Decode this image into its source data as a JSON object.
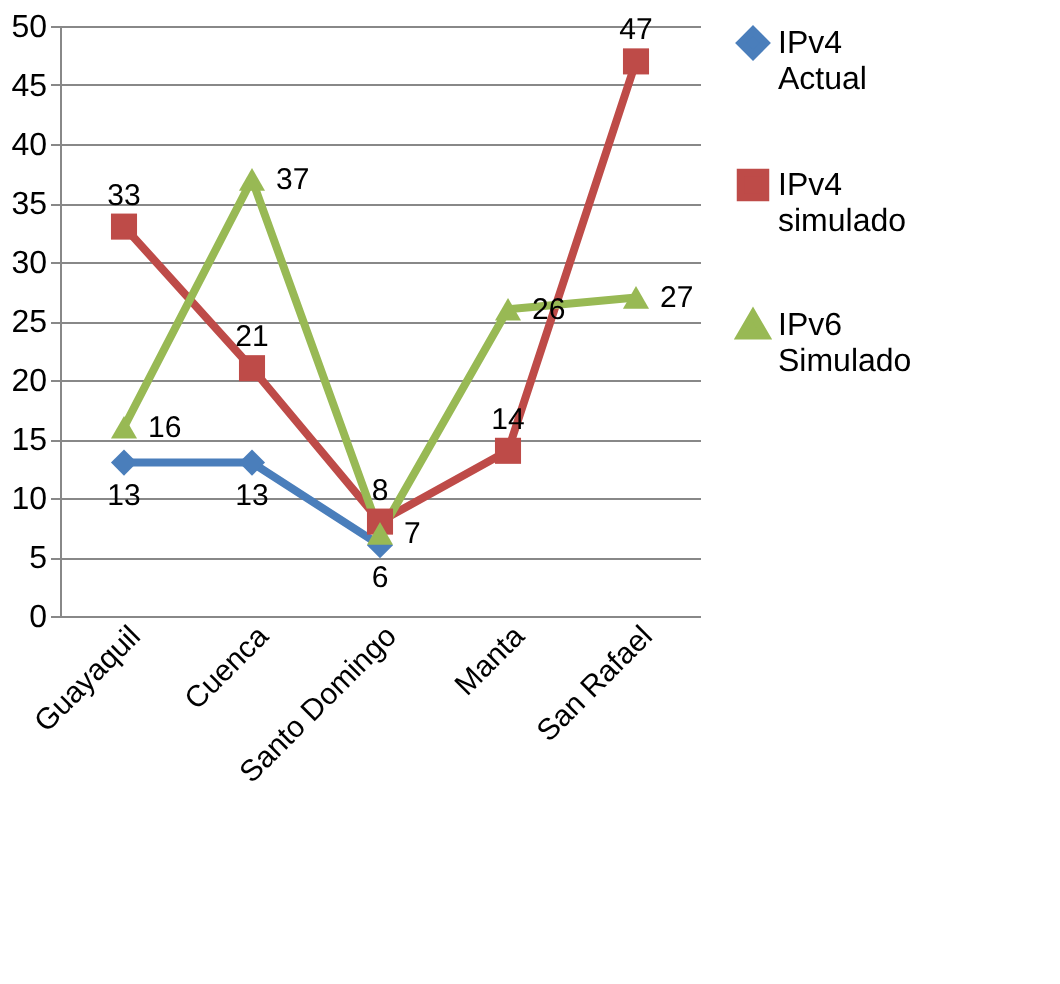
{
  "chart_data": {
    "type": "line",
    "categories": [
      "Guayaquil",
      "Cuenca",
      "Santo Domingo",
      "Manta",
      "San Rafael"
    ],
    "series": [
      {
        "name": "IPv4 Actual",
        "color": "#4a7ebb",
        "marker": "diamond",
        "values": [
          13,
          13,
          6,
          null,
          null
        ]
      },
      {
        "name": "IPv4 simulado",
        "color": "#be4b48",
        "marker": "square",
        "values": [
          33,
          21,
          8,
          14,
          47
        ]
      },
      {
        "name": "IPv6 Simulado",
        "color": "#98b954",
        "marker": "triangle",
        "values": [
          16,
          37,
          7,
          26,
          27
        ]
      }
    ],
    "ylim": [
      0,
      50
    ],
    "yticks": [
      0,
      5,
      10,
      15,
      20,
      25,
      30,
      35,
      40,
      45,
      50
    ],
    "grid": "y",
    "legend": "right",
    "data_labels": true
  }
}
